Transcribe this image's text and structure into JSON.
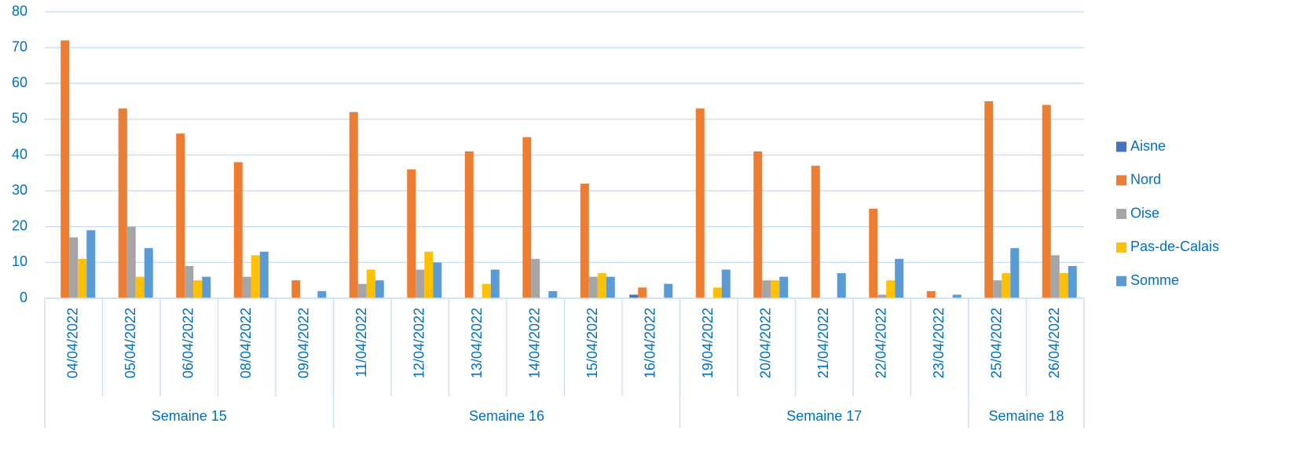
{
  "chart_data": {
    "type": "bar",
    "categories": [
      "04/04/2022",
      "05/04/2022",
      "06/04/2022",
      "08/04/2022",
      "09/04/2022",
      "11/04/2022",
      "12/04/2022",
      "13/04/2022",
      "14/04/2022",
      "15/04/2022",
      "16/04/2022",
      "19/04/2022",
      "20/04/2022",
      "21/04/2022",
      "22/04/2022",
      "23/04/2022",
      "25/04/2022",
      "26/04/2022"
    ],
    "groups": [
      {
        "label": "Semaine 15",
        "size": 5
      },
      {
        "label": "Semaine 16",
        "size": 6
      },
      {
        "label": "Semaine 17",
        "size": 5
      },
      {
        "label": "Semaine 18",
        "size": 2
      }
    ],
    "series": [
      {
        "name": "Aisne",
        "color": "#4472c4",
        "values": [
          0,
          0,
          0,
          0,
          0,
          0,
          0,
          0,
          0,
          0,
          1,
          0,
          0,
          0,
          0,
          0,
          0,
          0
        ]
      },
      {
        "name": "Nord",
        "color": "#ed7d31",
        "values": [
          72,
          53,
          46,
          38,
          5,
          52,
          36,
          41,
          45,
          32,
          3,
          53,
          41,
          37,
          25,
          2,
          55,
          54
        ]
      },
      {
        "name": "Oise",
        "color": "#a5a5a5",
        "values": [
          17,
          20,
          9,
          6,
          0,
          4,
          8,
          0,
          11,
          6,
          0,
          0,
          5,
          0,
          1,
          0,
          5,
          12
        ]
      },
      {
        "name": "Pas-de-Calais",
        "color": "#ffc000",
        "values": [
          11,
          6,
          5,
          12,
          0,
          8,
          13,
          4,
          0,
          7,
          0,
          3,
          5,
          0,
          5,
          0,
          7,
          7
        ]
      },
      {
        "name": "Somme",
        "color": "#5b9bd5",
        "values": [
          19,
          14,
          6,
          13,
          2,
          5,
          10,
          8,
          2,
          6,
          4,
          8,
          6,
          7,
          11,
          1,
          14,
          9
        ]
      }
    ],
    "ylim": [
      0,
      80
    ],
    "yticks": [
      0,
      10,
      20,
      30,
      40,
      50,
      60,
      70,
      80
    ],
    "grid": true,
    "legend": "right"
  }
}
